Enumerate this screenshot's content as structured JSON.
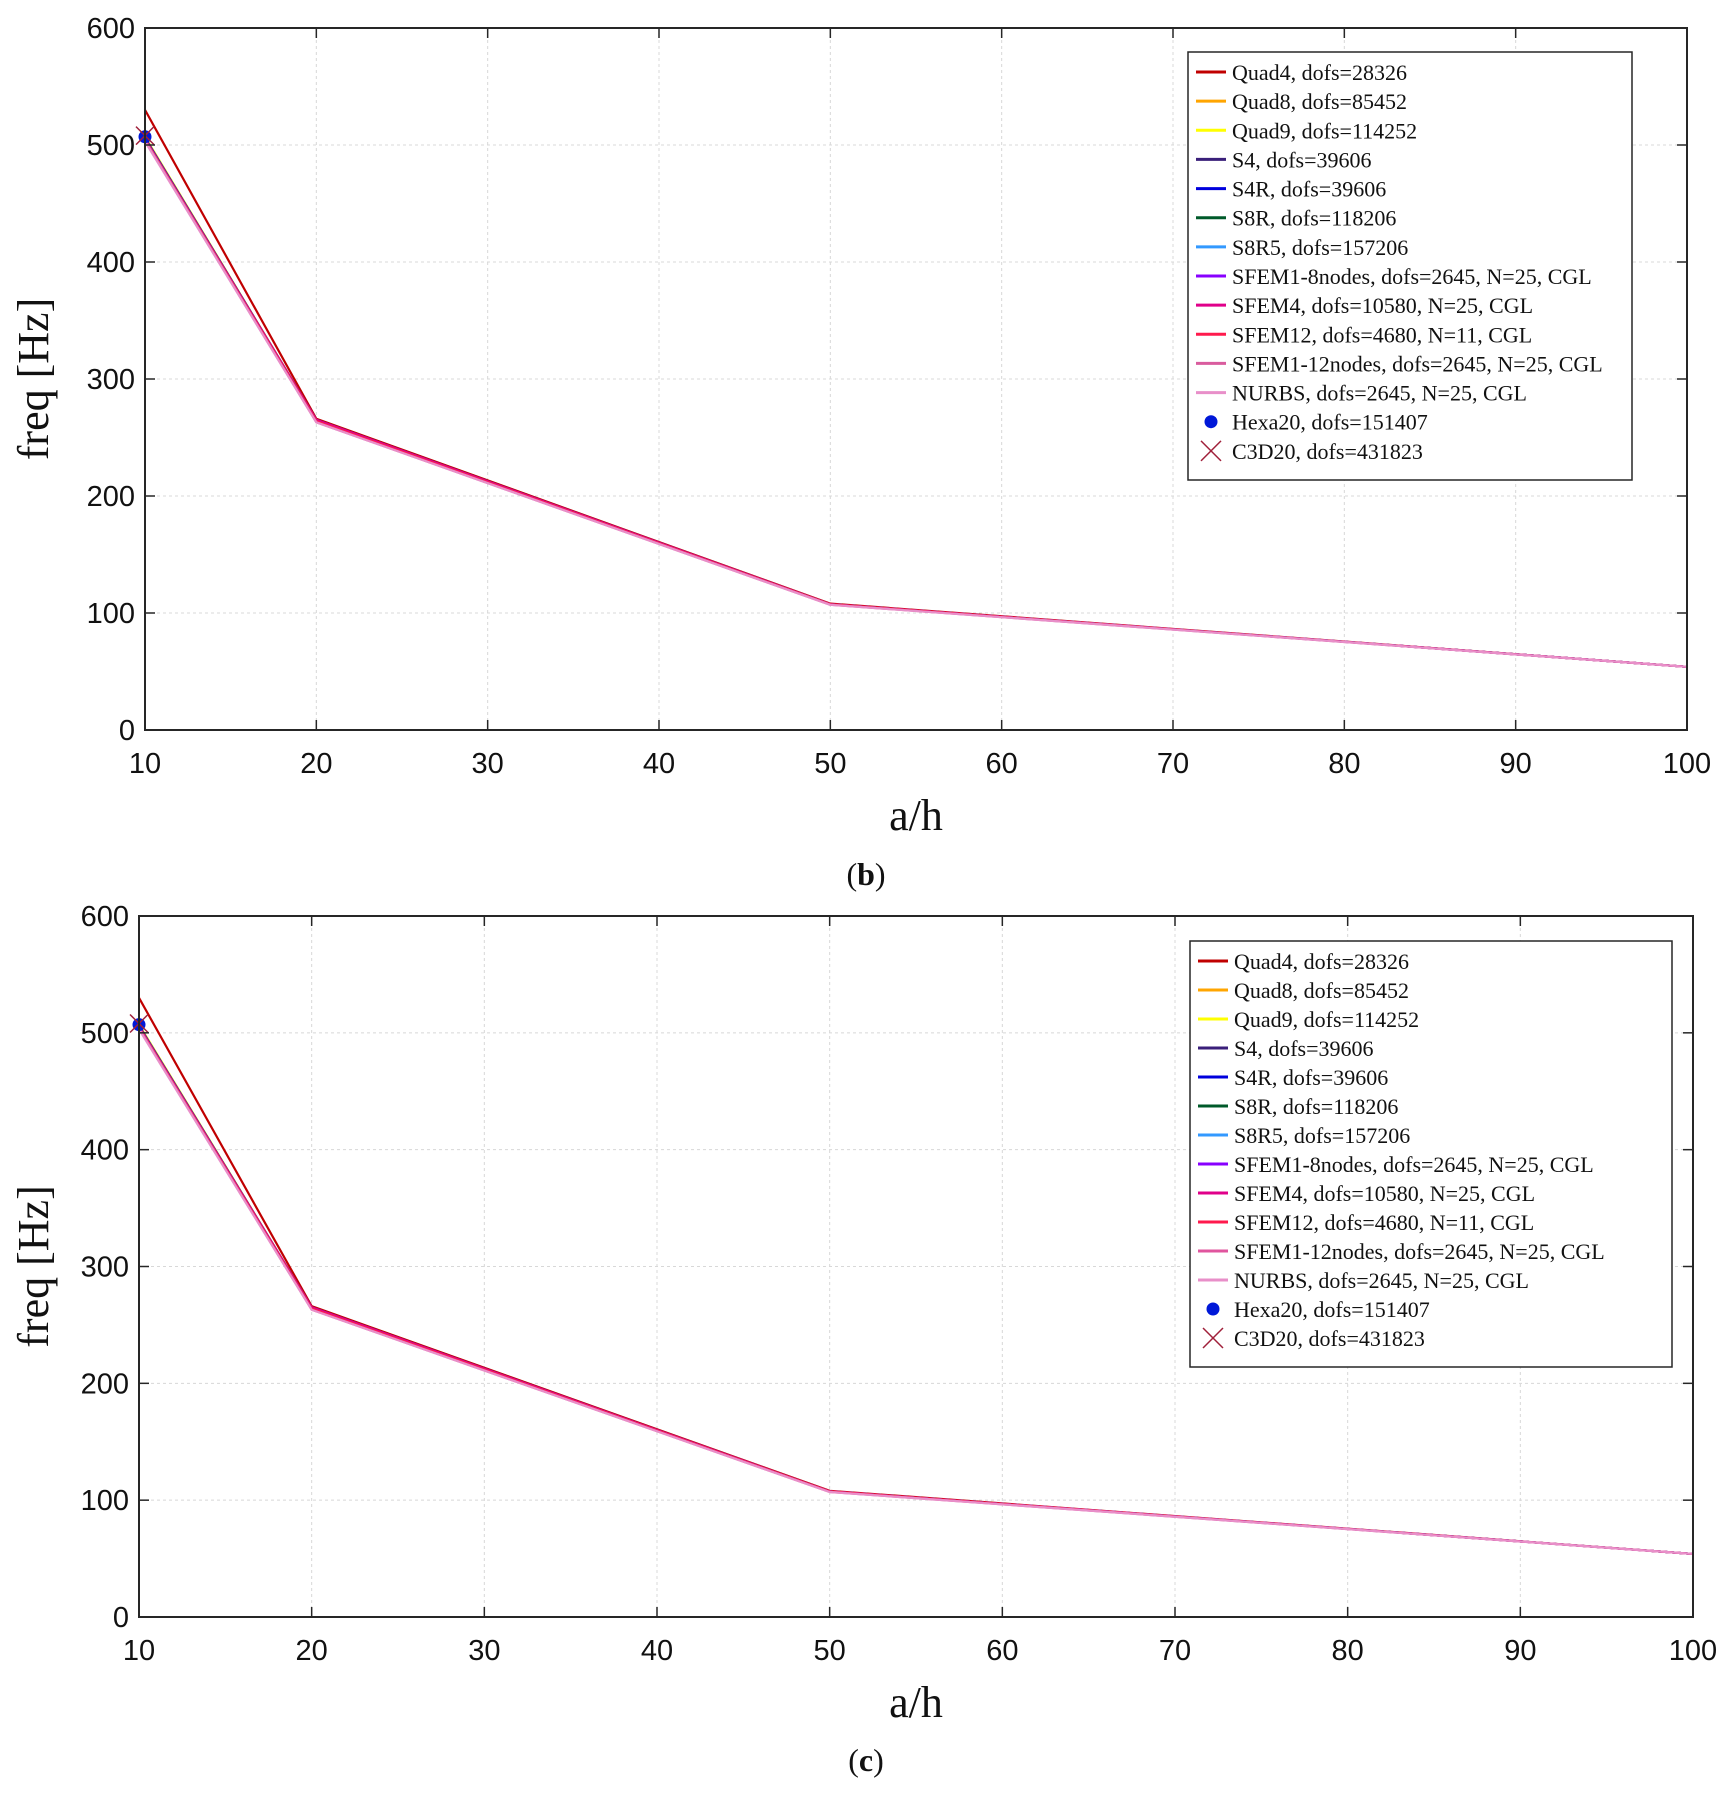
{
  "chart_data": [
    {
      "type": "line",
      "caption_label": "b",
      "xlabel": "a/h",
      "ylabel": "freq [Hz]",
      "xlim": [
        10,
        100
      ],
      "ylim": [
        0,
        600
      ],
      "grid": true,
      "legend_position": "top-right",
      "x_ticks": [
        10,
        20,
        30,
        40,
        50,
        60,
        70,
        80,
        90,
        100
      ],
      "y_ticks": [
        0,
        100,
        200,
        300,
        400,
        500,
        600
      ],
      "series": [
        {
          "name": "Quad4, dofs=28326",
          "color": "#c00000",
          "x": [
            10,
            20,
            50,
            100
          ],
          "values": [
            530,
            266,
            108,
            54
          ]
        },
        {
          "name": "Quad8, dofs=85452",
          "color": "#ffa500",
          "x": [
            10,
            20,
            50,
            100
          ],
          "values": [
            507,
            265,
            107.5,
            54
          ]
        },
        {
          "name": "Quad9, dofs=114252",
          "color": "#ffff00",
          "x": [
            10,
            20,
            50,
            100
          ],
          "values": [
            507,
            265,
            107.5,
            54
          ]
        },
        {
          "name": "S4, dofs=39606",
          "color": "#3a1f7a",
          "x": [
            10,
            20,
            50,
            100
          ],
          "values": [
            506,
            265,
            107.5,
            54
          ]
        },
        {
          "name": "S4R, dofs=39606",
          "color": "#0000dd",
          "x": [
            10,
            20,
            50,
            100
          ],
          "values": [
            506,
            265,
            107.5,
            54
          ]
        },
        {
          "name": "S8R, dofs=118206",
          "color": "#005a2a",
          "x": [
            10,
            20,
            50,
            100
          ],
          "values": [
            505,
            264,
            107.5,
            54
          ]
        },
        {
          "name": "S8R5, dofs=157206",
          "color": "#3399ff",
          "x": [
            10,
            20,
            50,
            100
          ],
          "values": [
            505,
            264,
            107.5,
            54
          ]
        },
        {
          "name": "SFEM1-8nodes, dofs=2645, N=25, CGL",
          "color": "#8800ff",
          "x": [
            10,
            20,
            50,
            100
          ],
          "values": [
            505,
            265,
            107.5,
            54
          ]
        },
        {
          "name": "SFEM4, dofs=10580, N=25, CGL",
          "color": "#e0008a",
          "x": [
            10,
            20,
            50,
            100
          ],
          "values": [
            505,
            265,
            107.5,
            54
          ]
        },
        {
          "name": "SFEM12, dofs=4680, N=11, CGL",
          "color": "#ff1a4d",
          "x": [
            10,
            20,
            50,
            100
          ],
          "values": [
            505,
            264,
            107.5,
            54
          ]
        },
        {
          "name": "SFEM1-12nodes, dofs=2645, N=25, CGL",
          "color": "#d95c9e",
          "x": [
            10,
            20,
            50,
            100
          ],
          "values": [
            504,
            263,
            107,
            54
          ]
        },
        {
          "name": "NURBS, dofs=2645, N=25, CGL",
          "color": "#e88fc9",
          "x": [
            10,
            20,
            50,
            100
          ],
          "values": [
            503,
            263,
            107,
            54
          ]
        }
      ],
      "markers": [
        {
          "name": "Hexa20, dofs=151407",
          "marker": "dot",
          "color": "#0018d8",
          "x": [
            10
          ],
          "values": [
            507
          ]
        },
        {
          "name": "C3D20, dofs=431823",
          "marker": "cross",
          "color": "#a0203a",
          "x": [
            10
          ],
          "values": [
            508
          ]
        }
      ]
    },
    {
      "type": "line",
      "caption_label": "c",
      "xlabel": "a/h",
      "ylabel": "freq [Hz]",
      "xlim": [
        10,
        100
      ],
      "ylim": [
        0,
        600
      ],
      "grid": true,
      "legend_position": "top-right",
      "x_ticks": [
        10,
        20,
        30,
        40,
        50,
        60,
        70,
        80,
        90,
        100
      ],
      "y_ticks": [
        0,
        100,
        200,
        300,
        400,
        500,
        600
      ],
      "series": [
        {
          "name": "Quad4, dofs=28326",
          "color": "#c00000",
          "x": [
            10,
            20,
            50,
            100
          ],
          "values": [
            530,
            266,
            108,
            54
          ]
        },
        {
          "name": "Quad8, dofs=85452",
          "color": "#ffa500",
          "x": [
            10,
            20,
            50,
            100
          ],
          "values": [
            507,
            265,
            107.5,
            54
          ]
        },
        {
          "name": "Quad9, dofs=114252",
          "color": "#ffff00",
          "x": [
            10,
            20,
            50,
            100
          ],
          "values": [
            507,
            265,
            107.5,
            54
          ]
        },
        {
          "name": "S4, dofs=39606",
          "color": "#3a1f7a",
          "x": [
            10,
            20,
            50,
            100
          ],
          "values": [
            506,
            265,
            107.5,
            54
          ]
        },
        {
          "name": "S4R, dofs=39606",
          "color": "#0000dd",
          "x": [
            10,
            20,
            50,
            100
          ],
          "values": [
            506,
            265,
            107.5,
            54
          ]
        },
        {
          "name": "S8R, dofs=118206",
          "color": "#005a2a",
          "x": [
            10,
            20,
            50,
            100
          ],
          "values": [
            505,
            264,
            107.5,
            54
          ]
        },
        {
          "name": "S8R5, dofs=157206",
          "color": "#3399ff",
          "x": [
            10,
            20,
            50,
            100
          ],
          "values": [
            505,
            264,
            107.5,
            54
          ]
        },
        {
          "name": "SFEM1-8nodes, dofs=2645, N=25, CGL",
          "color": "#8800ff",
          "x": [
            10,
            20,
            50,
            100
          ],
          "values": [
            505,
            265,
            107.5,
            54
          ]
        },
        {
          "name": "SFEM4, dofs=10580, N=25, CGL",
          "color": "#e0008a",
          "x": [
            10,
            20,
            50,
            100
          ],
          "values": [
            505,
            265,
            107.5,
            54
          ]
        },
        {
          "name": "SFEM12, dofs=4680, N=11, CGL",
          "color": "#ff1a4d",
          "x": [
            10,
            20,
            50,
            100
          ],
          "values": [
            505,
            264,
            107.5,
            54
          ]
        },
        {
          "name": "SFEM1-12nodes, dofs=2645, N=25, CGL",
          "color": "#e0559e",
          "x": [
            10,
            20,
            50,
            100
          ],
          "values": [
            504,
            263,
            107,
            54
          ]
        },
        {
          "name": "NURBS, dofs=2645, N=25, CGL",
          "color": "#e88fc9",
          "x": [
            10,
            20,
            50,
            100
          ],
          "values": [
            503,
            263,
            107,
            54
          ]
        }
      ],
      "markers": [
        {
          "name": "Hexa20, dofs=151407",
          "marker": "dot",
          "color": "#0018d8",
          "x": [
            10
          ],
          "values": [
            507
          ]
        },
        {
          "name": "C3D20, dofs=431823",
          "marker": "cross",
          "color": "#a0203a",
          "x": [
            10
          ],
          "values": [
            508
          ]
        }
      ]
    }
  ]
}
